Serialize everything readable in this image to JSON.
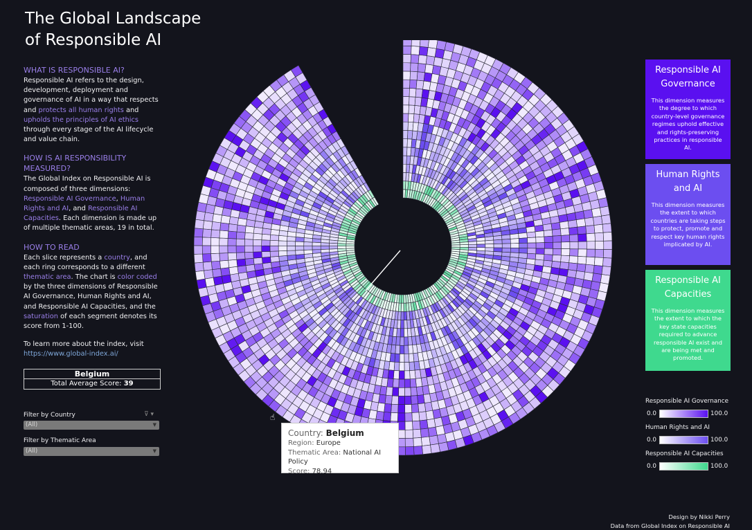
{
  "title": "The Global Landscape of Responsible AI",
  "left": {
    "what": {
      "heading": "WHAT IS RESPONSIBLE AI?",
      "text1": "Responsible AI refers to the design, development, deployment and governance of AI in a way that respects and ",
      "hl1": "protects all human rights",
      "text2": " and ",
      "hl2": "upholds the principles of AI ethics",
      "text3": " through every stage of the AI lifecycle and value chain."
    },
    "how_measured": {
      "heading": "HOW IS AI RESPONSIBILITY MEASURED?",
      "text1": "The Global Index on Responsible AI is composed of three dimensions: ",
      "hl1": "Responsible AI Governance",
      "text2": ", ",
      "hl2": "Human Rights and AI",
      "text3": ", and ",
      "hl3": "Responsible AI Capacities",
      "text4": ". Each dimension is made up of multiple thematic areas, 19 in total."
    },
    "how_read": {
      "heading": "HOW TO READ",
      "text1": "Each slice represents a ",
      "hl1": "country",
      "text2": ", and each ring corresponds to a different ",
      "hl2": "thematic area",
      "text3": ". The chart is ",
      "hl3": "color coded",
      "text4": " by the three dimensions of Responsible AI Governance, Human Rights and AI, and Responsible AI Capacities, and the ",
      "hl4": "saturation",
      "text5": " of each segment denotes its score from 1-100."
    },
    "learn_more": "To learn more about the index, visit",
    "url": "https://www.global-index.ai/"
  },
  "selected": {
    "country": "Belgium",
    "avg_label": "Total Average Score: ",
    "avg_value": "39"
  },
  "filters": {
    "country_label": "Filter by Country",
    "country_value": "(All)",
    "area_label": "Filter by Thematic Area",
    "area_value": "(All)"
  },
  "cards": [
    {
      "title": "Responsible AI Governance",
      "desc": "This dimension measures the degree to which country-level governance regimes uphold effective and rights-preserving practices in responsible AI.",
      "color": "#5a10f0"
    },
    {
      "title": "Human Rights and AI",
      "desc": "This dimension measures the extent to which countries are taking steps to protect, promote and respect key human rights implicated by AI.",
      "color": "#6c4ef0"
    },
    {
      "title": "Responsible AI Capacities",
      "desc": "This dimension measures the extent to which the key state capacities required to advance responsible AI exist and are being met and promoted.",
      "color": "#3fd98e"
    }
  ],
  "legend": [
    {
      "title": "Responsible AI Governance",
      "min": "0.0",
      "max": "100.0",
      "color": "#5a10f0"
    },
    {
      "title": "Human Rights and AI",
      "min": "0.0",
      "max": "100.0",
      "color": "#6c4ef0"
    },
    {
      "title": "Responsible AI Capacities",
      "min": "0.0",
      "max": "100.0",
      "color": "#3fd98e"
    }
  ],
  "tooltip": {
    "country_label": "Country: ",
    "country": "Belgium",
    "region_label": "Region: ",
    "region": "Europe",
    "area_label": "Thematic Area: ",
    "area": "National AI Policy",
    "score_label": "Score: ",
    "score": "78.94"
  },
  "credit": {
    "line1": "Design by Nikki Perry",
    "line2": "Data from Global Index on Responsible AI"
  },
  "chart_data": {
    "type": "heatmap",
    "layout": "radial",
    "rings": 19,
    "slices": 138,
    "ring_dimension": [
      "capacities",
      "capacities",
      "human_rights",
      "human_rights",
      "human_rights",
      "human_rights",
      "human_rights",
      "human_rights",
      "human_rights",
      "governance",
      "governance",
      "governance",
      "governance",
      "governance",
      "governance",
      "governance",
      "governance",
      "governance",
      "governance"
    ],
    "colors": {
      "governance": "#5a10f0",
      "human_rights": "#6c4ef0",
      "capacities": "#3fd98e"
    },
    "score_range": [
      0,
      100
    ]
  }
}
